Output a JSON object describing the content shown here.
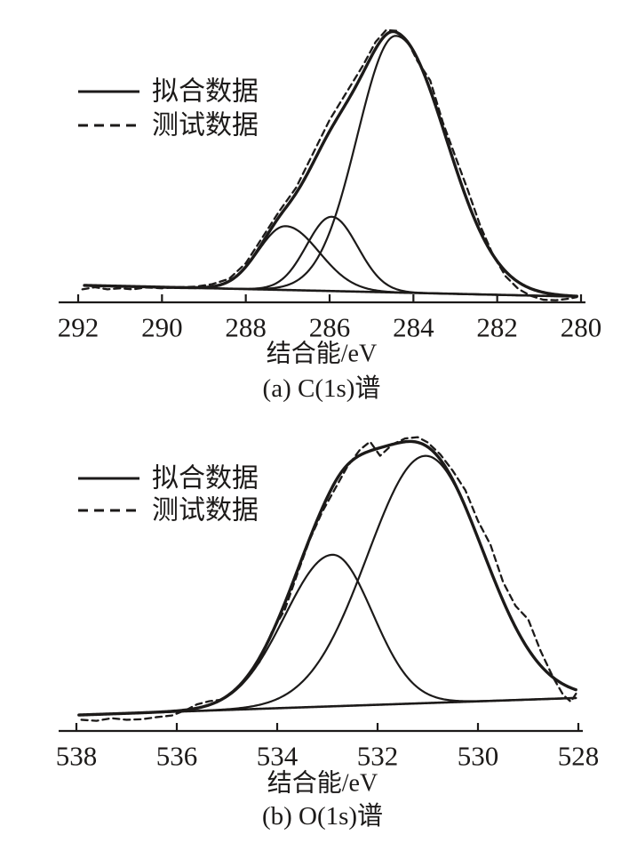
{
  "figure": {
    "background": "#ffffff",
    "line_color": "#1c1a19"
  },
  "chart_data": [
    {
      "type": "line",
      "panel": "a",
      "caption": "(a) C(1s)谱",
      "xlabel": "结合能/eV",
      "x_ticks": [
        292,
        290,
        288,
        286,
        284,
        282,
        280
      ],
      "x_range": [
        292,
        280
      ],
      "x_reversed": true,
      "y_axis": {
        "visible": false,
        "scale_note": "arbitrary units, fitted main peak ~ 1"
      },
      "legend": [
        {
          "label": "拟合数据",
          "line_style": "solid"
        },
        {
          "label": "测试数据",
          "line_style": "dashed"
        }
      ],
      "fit": {
        "baseline": {
          "start": {
            "ev": 291.85,
            "u": 0.065
          },
          "end": {
            "ev": 280.1,
            "u": 0.022
          }
        },
        "peaks": [
          {
            "name": "component-1",
            "center_ev": 287.05,
            "height": 0.245,
            "sigma_high_ev": 0.65,
            "sigma_low_ev": 0.8
          },
          {
            "name": "component-2",
            "center_ev": 285.95,
            "height": 0.285,
            "sigma_high_ev": 0.6,
            "sigma_low_ev": 0.62
          },
          {
            "name": "component-3-main",
            "center_ev": 284.42,
            "height": 0.985,
            "sigma_high_ev": 0.92,
            "sigma_low_ev": 1.2
          }
        ],
        "envelope_rule": "baseline + sum of peaks"
      },
      "test_points": [
        [
          291.9,
          0.05
        ],
        [
          291.6,
          0.058
        ],
        [
          291.3,
          0.05
        ],
        [
          291.0,
          0.054
        ],
        [
          290.7,
          0.05
        ],
        [
          290.4,
          0.057
        ],
        [
          290.0,
          0.054
        ],
        [
          289.6,
          0.058
        ],
        [
          289.2,
          0.06
        ],
        [
          288.8,
          0.07
        ],
        [
          288.4,
          0.09
        ],
        [
          288.0,
          0.15
        ],
        [
          287.6,
          0.25
        ],
        [
          287.2,
          0.35
        ],
        [
          286.8,
          0.44
        ],
        [
          286.4,
          0.57
        ],
        [
          286.0,
          0.7
        ],
        [
          285.6,
          0.805
        ],
        [
          285.2,
          0.91
        ],
        [
          284.9,
          1.0
        ],
        [
          284.65,
          1.045
        ],
        [
          284.4,
          1.042
        ],
        [
          284.15,
          1.005
        ],
        [
          283.9,
          0.925
        ],
        [
          283.6,
          0.852
        ],
        [
          283.3,
          0.692
        ],
        [
          283.0,
          0.56
        ],
        [
          282.7,
          0.43
        ],
        [
          282.4,
          0.292
        ],
        [
          282.1,
          0.182
        ],
        [
          281.8,
          0.1
        ],
        [
          281.5,
          0.052
        ],
        [
          281.2,
          0.025
        ],
        [
          280.9,
          0.01
        ],
        [
          280.6,
          0.008
        ],
        [
          280.3,
          0.014
        ],
        [
          280.1,
          0.02
        ]
      ]
    },
    {
      "type": "line",
      "panel": "b",
      "caption": "(b) O(1s)谱",
      "xlabel": "结合能/eV",
      "x_ticks": [
        538,
        536,
        534,
        532,
        530,
        528
      ],
      "x_range": [
        538,
        528
      ],
      "x_reversed": true,
      "y_axis": {
        "visible": false,
        "scale_note": "arbitrary units, fitted envelope max ~ 1.1"
      },
      "legend": [
        {
          "label": "拟合数据",
          "line_style": "solid"
        },
        {
          "label": "测试数据",
          "line_style": "dashed"
        }
      ],
      "fit": {
        "baseline": {
          "start": {
            "ev": 537.95,
            "u": 0.06
          },
          "end": {
            "ev": 528.05,
            "u": 0.124
          }
        },
        "peaks": [
          {
            "name": "component-1",
            "center_ev": 532.9,
            "height": 0.57,
            "sigma_high_ev": 0.95,
            "sigma_low_ev": 0.8
          },
          {
            "name": "component-2-main",
            "center_ev": 531.05,
            "height": 0.93,
            "sigma_high_ev": 1.15,
            "sigma_low_ev": 1.15
          }
        ],
        "envelope_rule": "baseline + sum of peaks"
      },
      "test_points": [
        [
          537.9,
          0.042
        ],
        [
          537.6,
          0.038
        ],
        [
          537.3,
          0.048
        ],
        [
          537.0,
          0.042
        ],
        [
          536.7,
          0.044
        ],
        [
          536.4,
          0.052
        ],
        [
          536.1,
          0.058
        ],
        [
          535.8,
          0.08
        ],
        [
          535.6,
          0.1
        ],
        [
          535.35,
          0.112
        ],
        [
          535.1,
          0.118
        ],
        [
          534.85,
          0.15
        ],
        [
          534.6,
          0.2
        ],
        [
          534.35,
          0.26
        ],
        [
          534.1,
          0.375
        ],
        [
          533.85,
          0.455
        ],
        [
          533.6,
          0.59
        ],
        [
          533.35,
          0.72
        ],
        [
          533.1,
          0.825
        ],
        [
          532.85,
          0.91
        ],
        [
          532.6,
          0.995
        ],
        [
          532.35,
          1.058
        ],
        [
          532.15,
          1.088
        ],
        [
          531.95,
          1.035
        ],
        [
          531.7,
          1.078
        ],
        [
          531.45,
          1.1
        ],
        [
          531.2,
          1.105
        ],
        [
          531.0,
          1.085
        ],
        [
          530.75,
          1.04
        ],
        [
          530.5,
          0.978
        ],
        [
          530.25,
          0.905
        ],
        [
          530.0,
          0.79
        ],
        [
          529.75,
          0.7
        ],
        [
          529.5,
          0.56
        ],
        [
          529.25,
          0.47
        ],
        [
          529.0,
          0.42
        ],
        [
          528.75,
          0.3
        ],
        [
          528.5,
          0.2
        ],
        [
          528.3,
          0.135
        ],
        [
          528.15,
          0.11
        ],
        [
          528.02,
          0.148
        ]
      ]
    }
  ]
}
